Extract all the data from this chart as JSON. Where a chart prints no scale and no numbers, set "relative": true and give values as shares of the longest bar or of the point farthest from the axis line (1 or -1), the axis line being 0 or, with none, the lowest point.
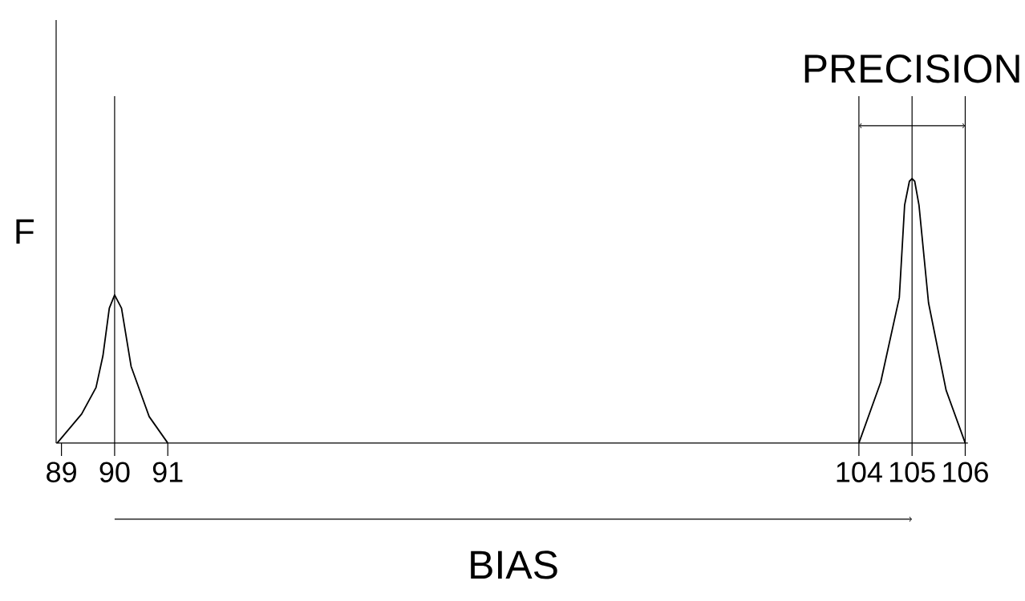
{
  "chart_data": {
    "type": "line",
    "ylabel": "F",
    "relative": true,
    "xlim": [
      88.9,
      106.05
    ],
    "xticks": [
      89,
      90,
      91,
      104,
      105,
      106
    ],
    "tick_labels": "x",
    "series": [
      {
        "color": "#000000",
        "x": [
          88.92,
          89.38,
          89.65,
          89.78,
          89.9,
          90,
          90.13,
          90.31,
          90.65,
          91
        ],
        "values": [
          0,
          0.11,
          0.21,
          0.33,
          0.51,
          0.56,
          0.51,
          0.29,
          0.1,
          0
        ]
      },
      {
        "color": "#000000",
        "x": [
          104,
          104.41,
          104.76,
          104.86,
          104.95,
          105,
          105.05,
          105.13,
          105.31,
          105.64,
          106
        ],
        "values": [
          0,
          0.23,
          0.55,
          0.9,
          0.99,
          1,
          0.99,
          0.9,
          0.53,
          0.2,
          0
        ]
      }
    ],
    "ref_lines": [
      {
        "axis": "x",
        "value": 90
      },
      {
        "axis": "x",
        "value": 104
      },
      {
        "axis": "x",
        "value": 105
      },
      {
        "axis": "x",
        "value": 106
      }
    ],
    "annotations": [
      "PRECISION",
      "BIAS"
    ]
  }
}
